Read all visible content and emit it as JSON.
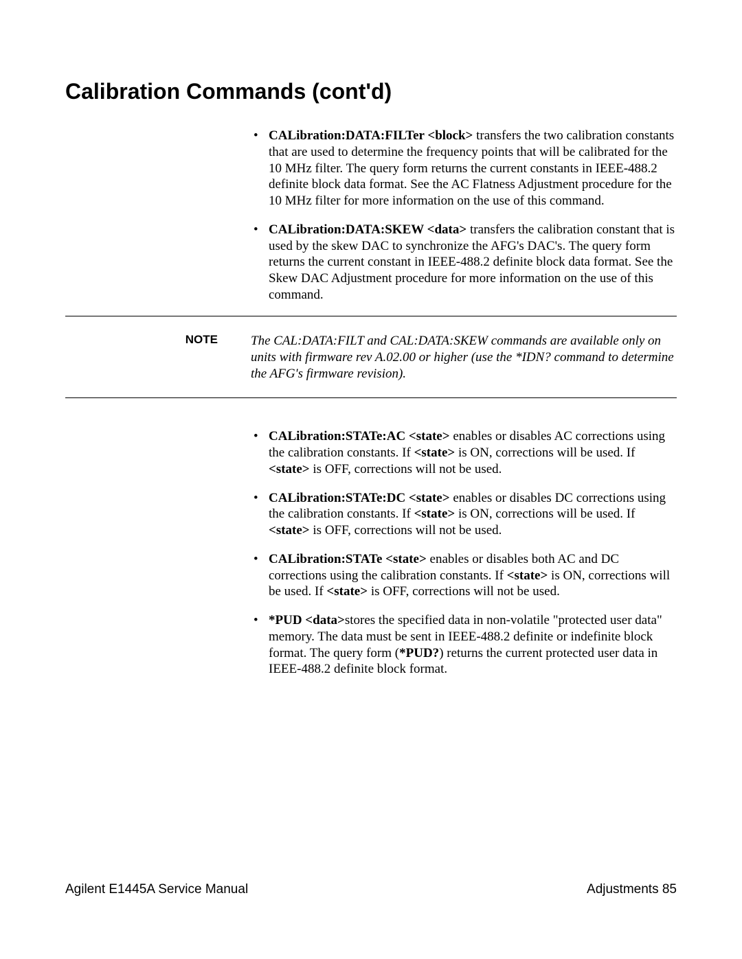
{
  "title": "Calibration Commands (cont'd)",
  "bullets_top": [
    {
      "cmd": "CALibration:DATA:FILTer <block>",
      "text": " transfers the two calibration constants that are used to determine the frequency points that will be calibrated for the 10 MHz filter. The query form returns the current constants in IEEE-488.2 definite block data format. See the AC Flatness Adjustment procedure for the 10 MHz filter for more information on the use of this command."
    },
    {
      "cmd": "CALibration:DATA:SKEW <data>",
      "text": " transfers the calibration constant that is used by the skew DAC to synchronize the AFG's DAC's. The query form returns the current constant in IEEE-488.2 definite block data format. See the Skew DAC Adjustment procedure for more information on the use of this command."
    }
  ],
  "note_label": "NOTE",
  "note_text": "The CAL:DATA:FILT and CAL:DATA:SKEW commands are available only on units with firmware rev A.02.00 or higher (use the *IDN? command to determine the AFG's firmware revision).",
  "bullets_bottom": [
    {
      "cmd": "CALibration:STATe:AC <state>",
      "pre": " enables or disables AC corrections using the calibration constants.  If ",
      "s1": "<state>",
      "mid": " is ON, corrections will be used.  If ",
      "s2": "<state>",
      "post": " is OFF, corrections will not be used."
    },
    {
      "cmd": "CALibration:STATe:DC <state>",
      "pre": " enables or disables DC corrections using the calibration constants.  If ",
      "s1": "<state>",
      "mid": " is ON, corrections will be used.  If ",
      "s2": "<state>",
      "post": " is OFF, corrections will not be used."
    },
    {
      "cmd": "CALibration:STATe <state>",
      "pre": " enables or disables both AC and DC corrections using the calibration constants.  If ",
      "s1": "<state>",
      "mid": " is ON, corrections will be used.  If ",
      "s2": "<state>",
      "post": " is OFF, corrections will not be used."
    }
  ],
  "pud": {
    "cmd": "*PUD <data>",
    "pre": "stores the specified data in non-volatile \"protected user data\" memory.  The data must be sent in IEEE-488.2 definite or indefinite block format.  The query form (",
    "q": "*PUD?",
    "post": ") returns the current protected user data in IEEE-488.2 definite block format."
  },
  "footer_left": "Agilent E1445A Service Manual",
  "footer_right": "Adjustments  85"
}
